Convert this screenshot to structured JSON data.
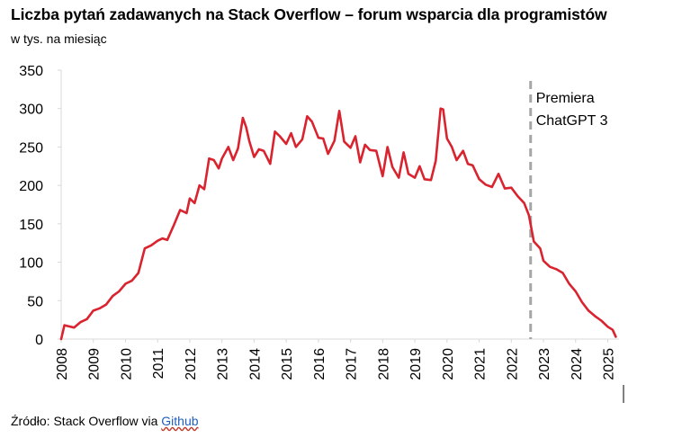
{
  "header": {
    "title": "Liczba pytań zadawanych na Stack Overflow – forum wsparcia dla programistów",
    "subtitle": "w tys. na miesiąc"
  },
  "footer": {
    "source_prefix": "Źródło: Stack Overflow via ",
    "source_link": "Github"
  },
  "colors": {
    "series": "#d9232e",
    "vline": "#a6a6a6",
    "axis": "#d9d9d9"
  },
  "chart_data": {
    "type": "line",
    "xlabel": "",
    "ylabel": "",
    "ylim": [
      0,
      350
    ],
    "yticks": [
      0,
      50,
      100,
      150,
      200,
      250,
      300,
      350
    ],
    "xlim": [
      2008.0,
      2025.35
    ],
    "xticks": [
      "2008",
      "2009",
      "2010",
      "2011",
      "2012",
      "2013",
      "2014",
      "2015",
      "2016",
      "2017",
      "2018",
      "2019",
      "2020",
      "2021",
      "2022",
      "2023",
      "2024",
      "2025"
    ],
    "grid": false,
    "legend": "none",
    "annotations": [
      {
        "x": 2022.6,
        "label_lines": [
          "Premiera",
          "ChatGPT 3"
        ]
      }
    ],
    "series": [
      {
        "x": [
          2008.0,
          2008.1,
          2008.2,
          2008.4,
          2008.6,
          2008.8,
          2009.0,
          2009.2,
          2009.4,
          2009.6,
          2009.8,
          2010.0,
          2010.2,
          2010.4,
          2010.6,
          2010.8,
          2011.0,
          2011.15,
          2011.3,
          2011.5,
          2011.7,
          2011.9,
          2012.0,
          2012.15,
          2012.3,
          2012.45,
          2012.6,
          2012.75,
          2012.9,
          2013.0,
          2013.2,
          2013.35,
          2013.5,
          2013.65,
          2013.75,
          2013.85,
          2014.0,
          2014.15,
          2014.3,
          2014.5,
          2014.65,
          2014.8,
          2015.0,
          2015.15,
          2015.3,
          2015.5,
          2015.65,
          2015.8,
          2016.0,
          2016.15,
          2016.3,
          2016.5,
          2016.65,
          2016.8,
          2017.0,
          2017.15,
          2017.3,
          2017.45,
          2017.6,
          2017.8,
          2018.0,
          2018.15,
          2018.3,
          2018.5,
          2018.65,
          2018.8,
          2019.0,
          2019.15,
          2019.3,
          2019.5,
          2019.65,
          2019.8,
          2019.88,
          2020.0,
          2020.15,
          2020.3,
          2020.5,
          2020.65,
          2020.8,
          2021.0,
          2021.2,
          2021.4,
          2021.6,
          2021.8,
          2022.0,
          2022.2,
          2022.4,
          2022.55,
          2022.7,
          2022.9,
          2023.0,
          2023.2,
          2023.4,
          2023.6,
          2023.8,
          2024.0,
          2024.2,
          2024.4,
          2024.6,
          2024.8,
          2025.0,
          2025.15,
          2025.25
        ],
        "values": [
          0,
          18,
          17,
          15,
          22,
          26,
          37,
          40,
          45,
          56,
          62,
          72,
          76,
          86,
          118,
          122,
          128,
          131,
          129,
          148,
          168,
          164,
          183,
          177,
          200,
          195,
          235,
          233,
          222,
          235,
          250,
          233,
          248,
          288,
          276,
          258,
          237,
          247,
          245,
          228,
          270,
          264,
          254,
          268,
          250,
          260,
          290,
          283,
          262,
          261,
          241,
          258,
          297,
          257,
          249,
          264,
          230,
          253,
          246,
          245,
          212,
          250,
          224,
          210,
          243,
          215,
          210,
          225,
          208,
          207,
          232,
          300,
          299,
          261,
          250,
          233,
          245,
          228,
          226,
          208,
          201,
          198,
          215,
          196,
          197,
          186,
          177,
          161,
          127,
          118,
          102,
          94,
          91,
          86,
          72,
          62,
          48,
          37,
          30,
          24,
          16,
          12,
          3
        ]
      }
    ]
  }
}
